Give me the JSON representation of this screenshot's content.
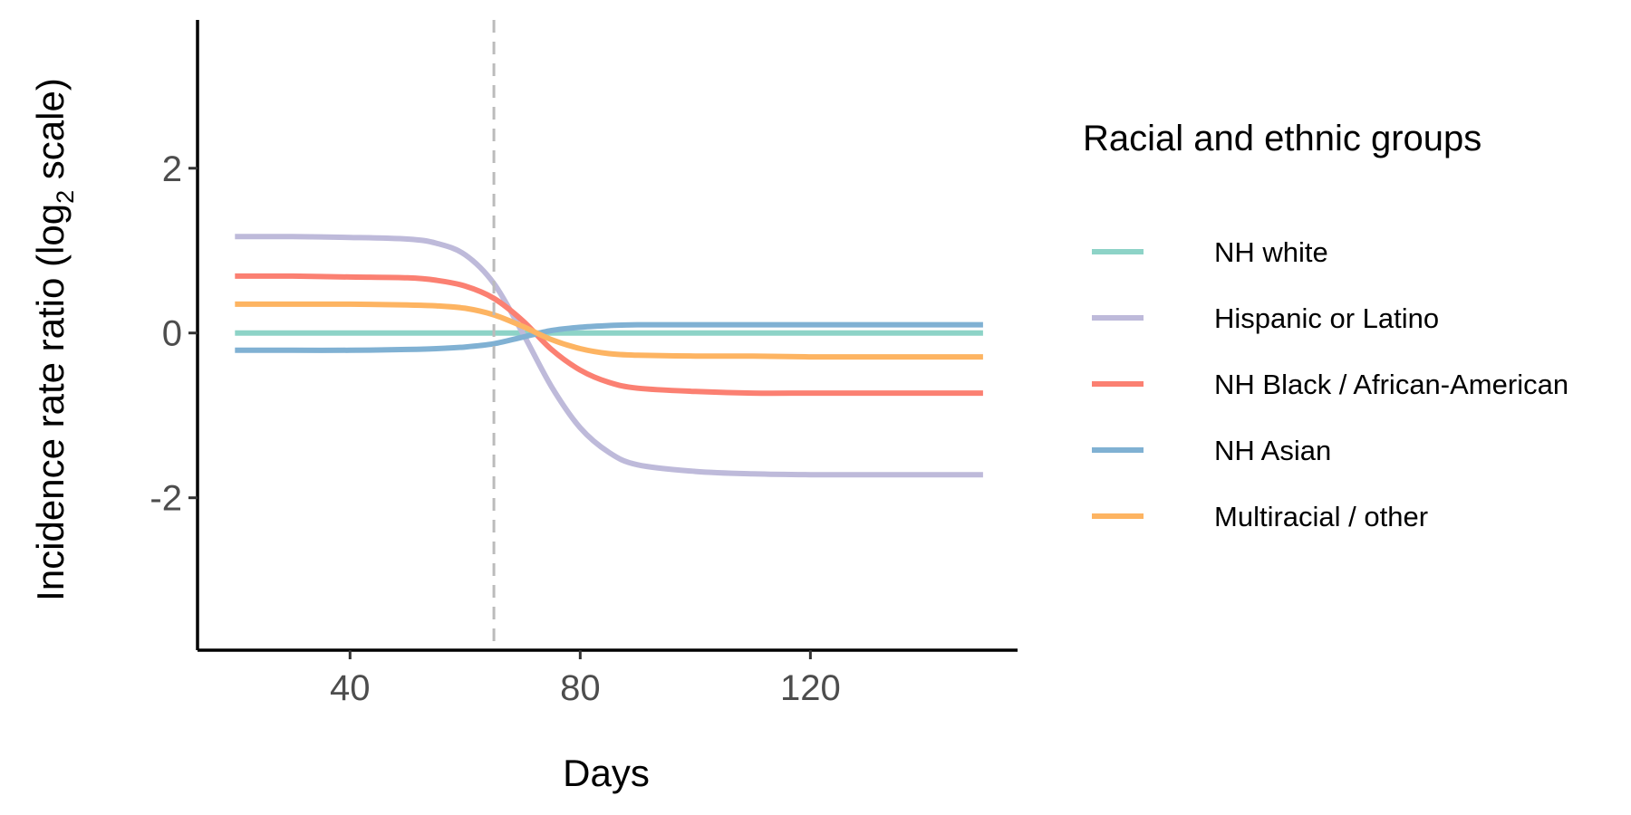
{
  "chart_data": {
    "type": "line",
    "xlabel": "Days",
    "ylabel_main": "Incidence rate ratio (log",
    "ylabel_sub": "2",
    "ylabel_tail": " scale)",
    "xlim": [
      13.5,
      156
    ],
    "ylim": [
      -3.85,
      3.8
    ],
    "x_ticks": [
      40,
      80,
      120
    ],
    "x_tick_labels": [
      "40",
      "80",
      "120"
    ],
    "y_ticks": [
      -2,
      0,
      2
    ],
    "y_tick_labels": [
      "-2",
      "0",
      "2"
    ],
    "vline_x": 65,
    "grid": false,
    "legend": {
      "title": "Racial and ethnic groups",
      "position": "right"
    },
    "x": [
      20,
      30,
      40,
      50,
      55,
      60,
      65,
      70,
      75,
      80,
      85,
      90,
      100,
      110,
      120,
      130,
      140,
      150
    ],
    "series": [
      {
        "name": "NH white",
        "color": "#8dd3c7",
        "values": [
          0,
          0,
          0,
          0,
          0,
          0,
          0,
          0,
          0,
          0,
          0,
          0,
          0,
          0,
          0,
          0,
          0,
          0
        ]
      },
      {
        "name": "Hispanic or Latino",
        "color": "#bebada",
        "values": [
          1.17,
          1.17,
          1.16,
          1.14,
          1.09,
          0.95,
          0.6,
          0.0,
          -0.65,
          -1.15,
          -1.45,
          -1.6,
          -1.68,
          -1.71,
          -1.72,
          -1.72,
          -1.72,
          -1.72
        ]
      },
      {
        "name": "NH Black / African-American",
        "color": "#fb8072",
        "values": [
          0.69,
          0.69,
          0.68,
          0.67,
          0.64,
          0.57,
          0.42,
          0.15,
          -0.2,
          -0.45,
          -0.6,
          -0.67,
          -0.71,
          -0.73,
          -0.73,
          -0.73,
          -0.73,
          -0.73
        ]
      },
      {
        "name": "NH Asian",
        "color": "#80b1d3",
        "values": [
          -0.21,
          -0.21,
          -0.21,
          -0.2,
          -0.19,
          -0.17,
          -0.13,
          -0.05,
          0.03,
          0.07,
          0.09,
          0.1,
          0.1,
          0.1,
          0.1,
          0.1,
          0.1,
          0.1
        ]
      },
      {
        "name": "Multiracial / other",
        "color": "#fdb462",
        "values": [
          0.35,
          0.35,
          0.35,
          0.34,
          0.33,
          0.3,
          0.22,
          0.08,
          -0.08,
          -0.19,
          -0.25,
          -0.27,
          -0.28,
          -0.28,
          -0.29,
          -0.29,
          -0.29,
          -0.29
        ]
      }
    ]
  }
}
